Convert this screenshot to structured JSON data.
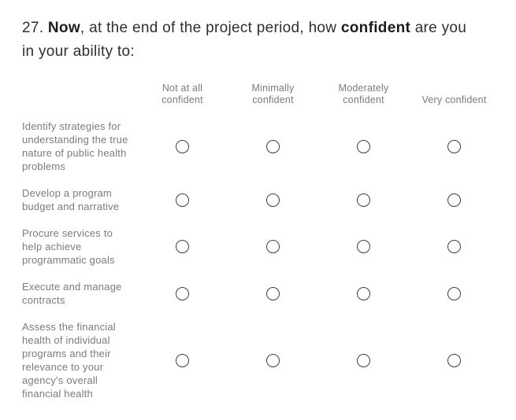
{
  "question": {
    "prefix": "27. ",
    "emphasis_1": "Now",
    "middle": ", at the end of the project period, how ",
    "emphasis_2": "confident",
    "suffix": " are you in your ability to:"
  },
  "matrix": {
    "columns": [
      {
        "label": "Not at all confident"
      },
      {
        "label": "Minimally confident"
      },
      {
        "label": "Moderately confident"
      },
      {
        "label": "Very confident"
      }
    ],
    "rows": [
      {
        "label": "Identify strategies for understanding the true nature of public health problems"
      },
      {
        "label": "Develop a program budget and narrative"
      },
      {
        "label": "Procure services to help achieve programmatic goals"
      },
      {
        "label": "Execute and manage contracts"
      },
      {
        "label": "Assess the financial health of individual programs and their relevance to your agency's overall financial health"
      }
    ],
    "radio_state": "unselected"
  },
  "colors": {
    "background": "#ffffff",
    "question_text": "#2f2f2f",
    "emphasis_text": "#1c1c1c",
    "muted_text": "#7b7b7b",
    "radio_border": "#3f3f3f"
  }
}
